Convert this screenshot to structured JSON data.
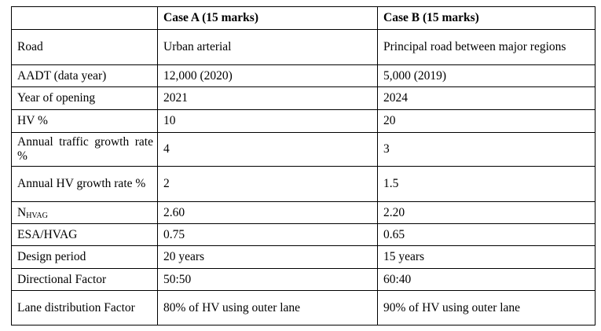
{
  "table": {
    "header": [
      "Case A (15 marks)",
      "Case B (15 marks)"
    ],
    "rows": [
      [
        "Road",
        "Urban arterial",
        "Principal road between major regions"
      ],
      [
        "AADT (data year)",
        "12,000 (2020)",
        "5,000 (2019)"
      ],
      [
        "Year of opening",
        "2021",
        "2024"
      ],
      [
        "HV %",
        "10",
        "20"
      ],
      [
        "Annual traffic growth rate %",
        "4",
        "3"
      ],
      [
        "Annual HV growth rate %",
        "2",
        "1.5"
      ],
      [
        {
          "main": "N",
          "sub": "HVAG"
        },
        "2.60",
        "2.20"
      ],
      [
        "ESA/HVAG",
        "0.75",
        "0.65"
      ],
      [
        "Design period",
        "20 years",
        "15 years"
      ],
      [
        "Directional Factor",
        "50:50",
        "60:40"
      ],
      [
        "Lane distribution Factor",
        "80% of HV using outer lane",
        "90% of HV using outer lane"
      ]
    ]
  }
}
